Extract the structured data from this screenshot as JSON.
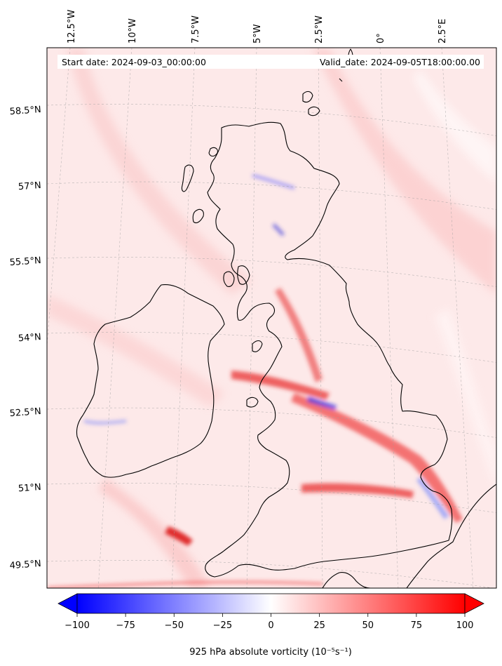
{
  "map": {
    "start_date": "Start date: 2024-09-03_00:00:00",
    "valid_date": "Valid_date: 2024-09-05T18:00:00.00"
  },
  "longitude_labels": [
    "12.5°W",
    "10°W",
    "7.5°W",
    "5°W",
    "2.5°W",
    "0°",
    "2.5°E"
  ],
  "latitude_labels": [
    "58.5°N",
    "57°N",
    "55.5°N",
    "54°N",
    "52.5°N",
    "51°N",
    "49.5°N"
  ],
  "colorbar": {
    "label": "925 hPa absolute vorticity (10⁻⁵s⁻¹)",
    "ticks": [
      "−100",
      "−75",
      "−50",
      "−25",
      "0",
      "25",
      "50",
      "75",
      "100"
    ],
    "min": -100,
    "max": 100,
    "low_color": "#0000ff",
    "mid_color": "#ffffff",
    "high_color": "#ff0000"
  }
}
